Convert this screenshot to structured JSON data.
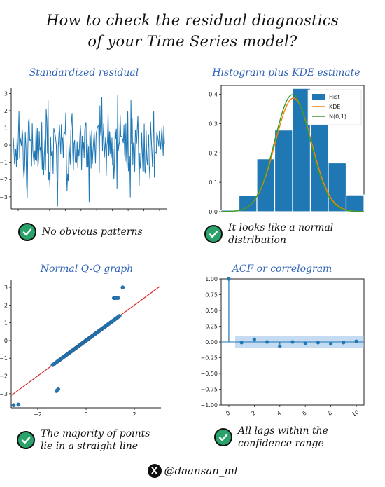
{
  "title": {
    "line1": "How to check the residual diagnostics",
    "line2": "of your Time Series model?"
  },
  "colors": {
    "accent": "#2f63b8",
    "series": "#1f77b4",
    "kde": "#ff7f0e",
    "normal": "#2ca02c",
    "qq_line": "#d62728",
    "check": "#2aa36a"
  },
  "panels": {
    "standardized": {
      "title": "Standardized residual",
      "note": "No obvious patterns"
    },
    "histogram": {
      "title": "Histogram plus KDE estimate",
      "note_line1": "It looks like a normal",
      "note_line2": "distribution"
    },
    "qq": {
      "title": "Normal Q-Q graph",
      "note_line1": "The majority of points",
      "note_line2": "lie in a straight line"
    },
    "acf": {
      "title": "ACF or correlogram",
      "note_line1": "All lags within the",
      "note_line2": "confidence range"
    }
  },
  "footer": {
    "logo": "X",
    "handle": "@daansan_ml"
  },
  "chart_data": [
    {
      "type": "line",
      "yticks": [
        "3",
        "2",
        "1",
        "0",
        "−1",
        "−2",
        "−3"
      ],
      "ylim": [
        -3.7,
        3.3
      ],
      "icons": [
        "check-icon"
      ]
    },
    {
      "type": "bar",
      "legend": [
        "Hist",
        "KDE",
        "N(0,1)"
      ],
      "yticks": [
        "0.4",
        "0.3",
        "0.2",
        "0.1",
        "0.0"
      ],
      "ylim": [
        0,
        0.43
      ],
      "xlim": [
        -4,
        4
      ],
      "bins": [
        -3.5,
        -2.5,
        -1.5,
        -0.5,
        0.5,
        1.5,
        2.5,
        3.5
      ],
      "values": [
        0.005,
        0.055,
        0.18,
        0.278,
        0.42,
        0.302,
        0.166,
        0.057
      ],
      "legend_position": "top-right"
    },
    {
      "type": "scatter",
      "yticks": [
        "3",
        "2",
        "1",
        "0",
        "−1",
        "−2",
        "−3"
      ],
      "xticks": [
        "−2",
        "0",
        "2"
      ],
      "xlim": [
        -3.1,
        3.1
      ],
      "ylim": [
        -3.8,
        3.4
      ]
    },
    {
      "type": "scatter",
      "yticks": [
        "1.00",
        "0.75",
        "0.50",
        "0.25",
        "0.00",
        "−0.25",
        "−0.50",
        "−0.75",
        "−1.00"
      ],
      "xticks": [
        "0",
        "2",
        "4",
        "6",
        "8",
        "10"
      ],
      "xlim": [
        -0.6,
        10.6
      ],
      "ylim": [
        -1,
        1
      ],
      "lags": [
        0,
        1,
        2,
        3,
        4,
        5,
        6,
        7,
        8,
        9,
        10
      ],
      "values": [
        1.0,
        -0.01,
        0.04,
        0.0,
        -0.07,
        0.0,
        -0.02,
        -0.01,
        -0.03,
        -0.01,
        0.01
      ],
      "confidence": [
        -0.1,
        0.1
      ]
    }
  ]
}
